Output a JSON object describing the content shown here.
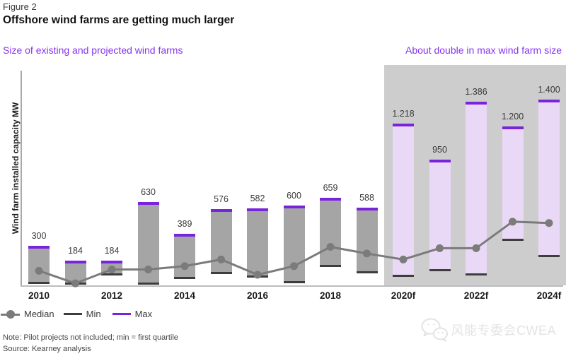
{
  "header": {
    "figure_label": "Figure 2",
    "title": "Offshore wind farms are getting much larger"
  },
  "subtitles": {
    "left": "Size of existing and projected wind farms",
    "right": "About double in max wind farm size"
  },
  "chart_data": {
    "type": "bar",
    "title": "Offshore wind farms are getting much larger",
    "xlabel": "",
    "ylabel": "Wind farm installed capacity MW",
    "ylim": [
      0,
      1400
    ],
    "grid": false,
    "legend_position": "bottom-left",
    "categories": [
      "2010",
      "2011",
      "2012",
      "2013",
      "2014",
      "2015",
      "2016",
      "2017",
      "2018",
      "2019",
      "2020f",
      "2021f",
      "2022f",
      "2023f",
      "2024f"
    ],
    "x_tick_labels": [
      "2010",
      "2012",
      "2014",
      "2016",
      "2018",
      "2020f",
      "2022f",
      "2024f"
    ],
    "forecast_start_index": 10,
    "series": [
      {
        "name": "Max",
        "values": [
          300,
          184,
          184,
          630,
          389,
          576,
          582,
          600,
          659,
          588,
          1218,
          950,
          1386,
          1200,
          1400
        ]
      },
      {
        "name": "Min",
        "values": [
          15,
          10,
          80,
          10,
          55,
          90,
          65,
          20,
          145,
          95,
          70,
          110,
          80,
          340,
          220
        ]
      },
      {
        "name": "Median",
        "values": [
          110,
          15,
          120,
          120,
          145,
          195,
          80,
          145,
          290,
          240,
          195,
          280,
          280,
          480,
          470
        ]
      }
    ],
    "bar_labels": [
      "300",
      "184",
      "184",
      "630",
      "389",
      "576",
      "582",
      "600",
      "659",
      "588",
      "1.218",
      "950",
      "1.386",
      "1.200",
      "1.400"
    ],
    "legend": [
      {
        "label": "Median",
        "swatch": "gray-line-with-dot"
      },
      {
        "label": "Min",
        "swatch": "dark-line"
      },
      {
        "label": "Max",
        "swatch": "purple-line"
      }
    ],
    "colors": {
      "bar_historical": "#a5a5a5",
      "bar_forecast": "#e9d9f6",
      "max_cap": "#7823dc",
      "min_tick": "#3d3d3d",
      "median": "#7b7b7b",
      "forecast_panel": "#cdcdcd",
      "accent_purple": "#8633ee",
      "axis": "#a9a9a9"
    }
  },
  "footnotes": {
    "note": "Note: Pilot projects not included; min = first quartile",
    "source": "Source: Kearney analysis"
  },
  "watermark": {
    "icon": "wechat-icon",
    "text": "风能专委会CWEA"
  }
}
